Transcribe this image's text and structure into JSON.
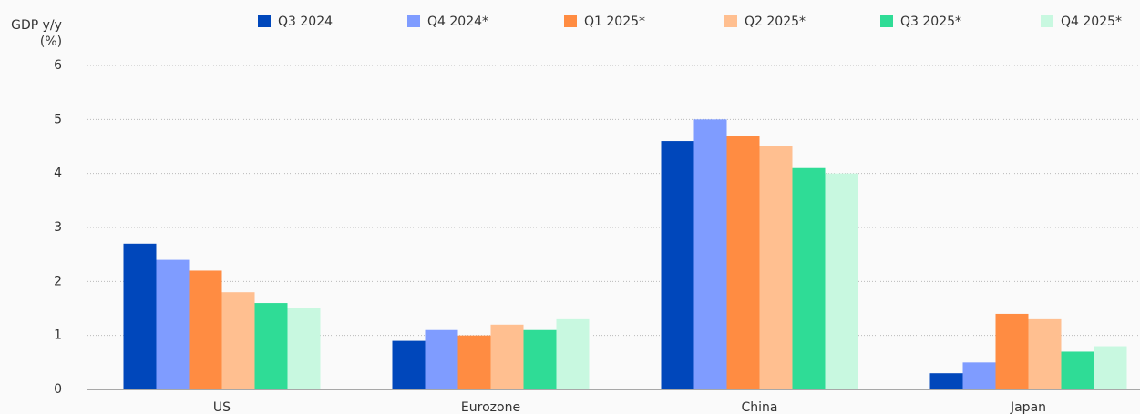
{
  "chart_data": {
    "type": "bar",
    "y_label": [
      "GDP y/y",
      "(%)"
    ],
    "categories": [
      "US",
      "Eurozone",
      "China",
      "Japan"
    ],
    "series": [
      {
        "name": "Q3 2024",
        "color": "#0047bb",
        "values": [
          2.7,
          0.9,
          4.6,
          0.3
        ]
      },
      {
        "name": "Q4 2024*",
        "color": "#7f9cff",
        "values": [
          2.4,
          1.1,
          5.0,
          0.5
        ]
      },
      {
        "name": "Q1 2025*",
        "color": "#ff8c42",
        "values": [
          2.2,
          1.0,
          4.7,
          1.4
        ]
      },
      {
        "name": "Q2 2025*",
        "color": "#ffbf90",
        "values": [
          1.8,
          1.2,
          4.5,
          1.3
        ]
      },
      {
        "name": "Q3 2025*",
        "color": "#2fdc96",
        "values": [
          1.6,
          1.1,
          4.1,
          0.7
        ]
      },
      {
        "name": "Q4 2025*",
        "color": "#c8f8e0",
        "values": [
          1.5,
          1.3,
          4.0,
          0.8
        ]
      }
    ],
    "ylim": [
      0,
      6
    ],
    "yticks": [
      0,
      1,
      2,
      3,
      4,
      5,
      6
    ],
    "grid": true,
    "legend": "top"
  }
}
